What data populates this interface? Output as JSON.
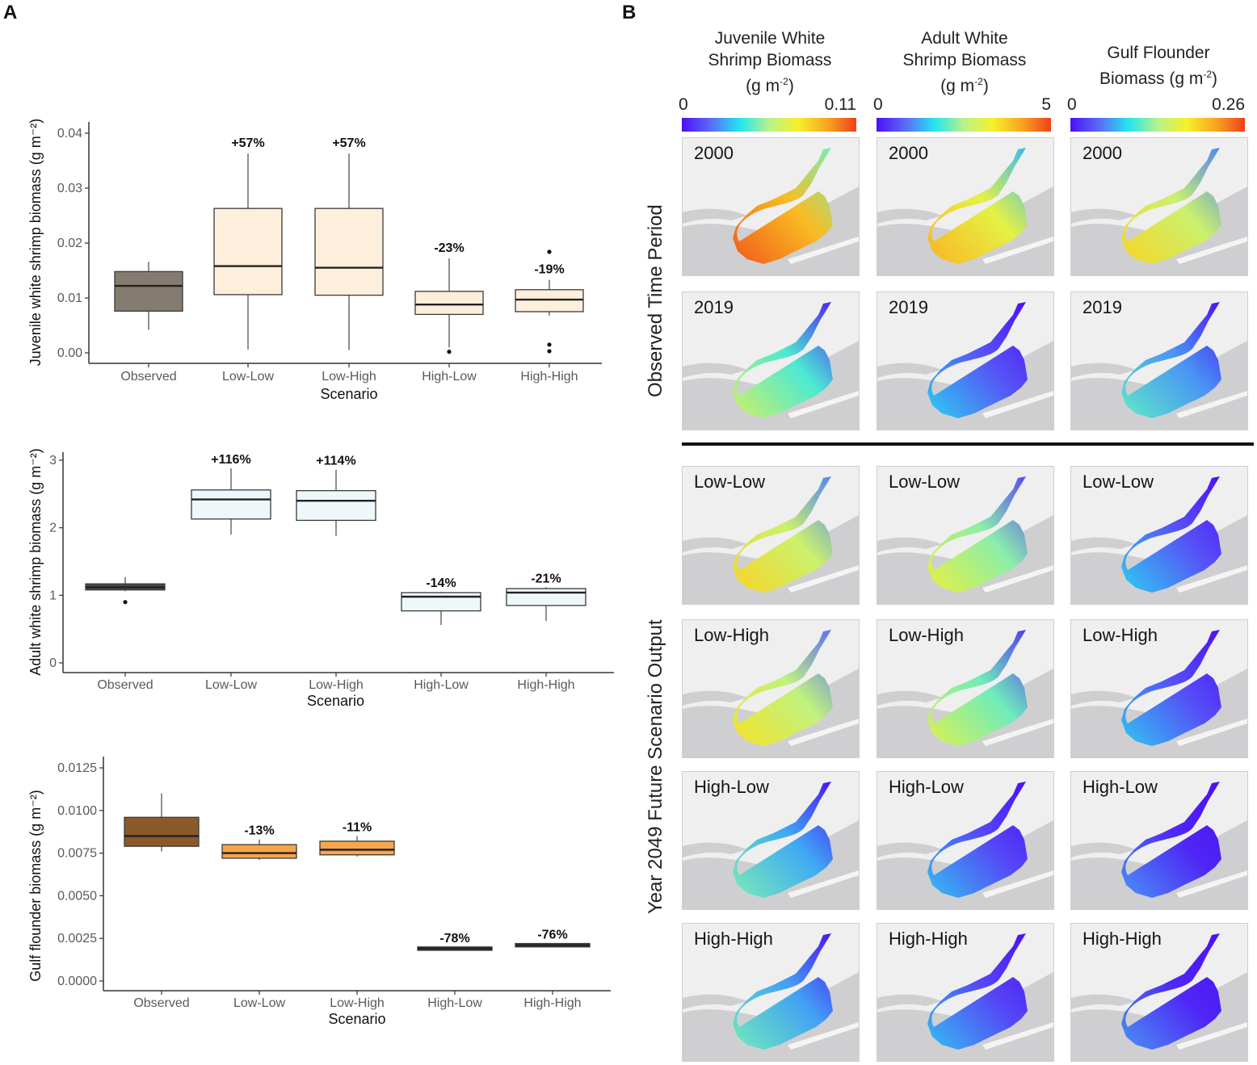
{
  "panels": {
    "a_label": "A",
    "b_label": "B"
  },
  "chart_data": [
    {
      "type": "boxplot",
      "id": "juvenile",
      "ylabel": "Juvenile white shrimp biomass (g m⁻²)",
      "xlabel": "Scenario",
      "categories": [
        "Observed",
        "Low-Low",
        "Low-High",
        "High-Low",
        "High-High"
      ],
      "ylim": [
        0,
        0.04
      ],
      "yticks": [
        0.0,
        0.01,
        0.02,
        0.03,
        0.04
      ],
      "ytick_labels": [
        "0.00",
        "0.01",
        "0.02",
        "0.03",
        "0.04"
      ],
      "grid": false,
      "series": [
        {
          "name": "Observed",
          "whisker_low": 0.0042,
          "q1": 0.0076,
          "median": 0.0122,
          "q3": 0.0148,
          "whisker_high": 0.0166,
          "outliers": [],
          "fill": "#857b70",
          "annotation": ""
        },
        {
          "name": "Low-Low",
          "whisker_low": 0.0006,
          "q1": 0.0106,
          "median": 0.0158,
          "q3": 0.0263,
          "whisker_high": 0.0363,
          "outliers": [],
          "fill": "#fdefdc",
          "annotation": "+57%"
        },
        {
          "name": "Low-High",
          "whisker_low": 0.0005,
          "q1": 0.0105,
          "median": 0.0155,
          "q3": 0.0263,
          "whisker_high": 0.0363,
          "outliers": [],
          "fill": "#fdefdc",
          "annotation": "+57%"
        },
        {
          "name": "High-Low",
          "whisker_low": 0.001,
          "q1": 0.007,
          "median": 0.0088,
          "q3": 0.0112,
          "whisker_high": 0.0172,
          "outliers": [
            0.0002
          ],
          "fill": "#fdefdc",
          "annotation": "-23%"
        },
        {
          "name": "High-High",
          "whisker_low": 0.0068,
          "q1": 0.0075,
          "median": 0.0097,
          "q3": 0.0115,
          "whisker_high": 0.0133,
          "outliers": [
            0.0184,
            0.0015,
            0.0003
          ],
          "fill": "#fdefdc",
          "annotation": "-19%"
        }
      ]
    },
    {
      "type": "boxplot",
      "id": "adult",
      "ylabel": "Adult white shrimp biomass (g m⁻²)",
      "xlabel": "Scenario",
      "categories": [
        "Observed",
        "Low-Low",
        "Low-High",
        "High-Low",
        "High-High"
      ],
      "ylim": [
        0,
        3.6
      ],
      "yticks": [
        0,
        1,
        2,
        3
      ],
      "ytick_labels": [
        "0",
        "1",
        "2",
        "3"
      ],
      "grid": false,
      "series": [
        {
          "name": "Observed",
          "whisker_low": 1.06,
          "q1": 1.08,
          "median": 1.12,
          "q3": 1.17,
          "whisker_high": 1.27,
          "outliers": [
            0.9
          ],
          "fill": "#4a4a4a",
          "annotation": ""
        },
        {
          "name": "Low-Low",
          "whisker_low": 1.9,
          "q1": 2.13,
          "median": 2.42,
          "q3": 2.56,
          "whisker_high": 2.88,
          "outliers": [],
          "fill": "#eef8fb",
          "annotation": "+116%"
        },
        {
          "name": "Low-High",
          "whisker_low": 1.88,
          "q1": 2.11,
          "median": 2.4,
          "q3": 2.55,
          "whisker_high": 2.86,
          "outliers": [],
          "fill": "#eef8fb",
          "annotation": "+114%"
        },
        {
          "name": "High-Low",
          "whisker_low": 0.56,
          "q1": 0.77,
          "median": 0.98,
          "q3": 1.04,
          "whisker_high": 1.05,
          "outliers": [],
          "fill": "#eef8fb",
          "annotation": "-14%"
        },
        {
          "name": "High-High",
          "whisker_low": 0.62,
          "q1": 0.85,
          "median": 1.04,
          "q3": 1.1,
          "whisker_high": 1.12,
          "outliers": [],
          "fill": "#eef8fb",
          "annotation": "-21%"
        }
      ]
    },
    {
      "type": "boxplot",
      "id": "flounder",
      "ylabel": "Gulf flounder biomass (g m⁻²)",
      "xlabel": "Scenario",
      "categories": [
        "Observed",
        "Low-Low",
        "Low-High",
        "High-Low",
        "High-High"
      ],
      "ylim": [
        0,
        0.0125
      ],
      "yticks": [
        0.0,
        0.0025,
        0.005,
        0.0075,
        0.01,
        0.0125
      ],
      "ytick_labels": [
        "0.0000",
        "0.0025",
        "0.0050",
        "0.0075",
        "0.0100",
        "0.0125"
      ],
      "grid": false,
      "series": [
        {
          "name": "Observed",
          "whisker_low": 0.0076,
          "q1": 0.0079,
          "median": 0.0085,
          "q3": 0.0096,
          "whisker_high": 0.011,
          "outliers": [],
          "fill": "#8a5a2b",
          "annotation": ""
        },
        {
          "name": "Low-Low",
          "whisker_low": 0.0071,
          "q1": 0.0072,
          "median": 0.0075,
          "q3": 0.008,
          "whisker_high": 0.0083,
          "outliers": [],
          "fill": "#f7a54c",
          "annotation": "-13%"
        },
        {
          "name": "Low-High",
          "whisker_low": 0.0073,
          "q1": 0.0074,
          "median": 0.0077,
          "q3": 0.0082,
          "whisker_high": 0.0085,
          "outliers": [],
          "fill": "#f7a54c",
          "annotation": "-11%"
        },
        {
          "name": "High-Low",
          "whisker_low": 0.0019,
          "q1": 0.0018,
          "median": 0.0019,
          "q3": 0.002,
          "whisker_high": 0.002,
          "outliers": [],
          "fill": "#5a4430",
          "annotation": "-78%"
        },
        {
          "name": "High-High",
          "whisker_low": 0.002,
          "q1": 0.002,
          "median": 0.0021,
          "q3": 0.0022,
          "whisker_high": 0.0022,
          "outliers": [],
          "fill": "#5a4430",
          "annotation": "-76%"
        }
      ]
    }
  ],
  "maps": {
    "columns": [
      {
        "title_lines": [
          "Juvenile White",
          "Shrimp Biomass",
          "(g m"
        ],
        "unit_sup": "-2",
        "unit_close": ")",
        "cbar_min": "0",
        "cbar_max": "0.11"
      },
      {
        "title_lines": [
          "Adult White",
          "Shrimp Biomass",
          "(g m"
        ],
        "unit_sup": "-2",
        "unit_close": ")",
        "cbar_min": "0",
        "cbar_max": "5"
      },
      {
        "title_lines": [
          "Gulf Flounder",
          "Biomass (g m"
        ],
        "unit_sup": "-2",
        "unit_close": ")",
        "cbar_min": "0",
        "cbar_max": "0.26"
      }
    ],
    "colormap": [
      "#4b10f5",
      "#5b6cf7",
      "#22e6f0",
      "#b8f28a",
      "#f7f02a",
      "#f9a520",
      "#f0401a"
    ],
    "row_groups": [
      {
        "title": "Observed Time Period"
      },
      {
        "title": "Year 2049 Future Scenario Output"
      }
    ],
    "rows": [
      {
        "label": "2000",
        "levels": [
          0.78,
          0.62,
          0.55
        ]
      },
      {
        "label": "2019",
        "levels": [
          0.38,
          0.12,
          0.22
        ]
      },
      {
        "label": "Low-Low",
        "levels": [
          0.55,
          0.45,
          0.12
        ]
      },
      {
        "label": "Low-High",
        "levels": [
          0.52,
          0.42,
          0.11
        ]
      },
      {
        "label": "High-Low",
        "levels": [
          0.25,
          0.1,
          0.04
        ]
      },
      {
        "label": "High-High",
        "levels": [
          0.24,
          0.1,
          0.04
        ]
      }
    ]
  }
}
